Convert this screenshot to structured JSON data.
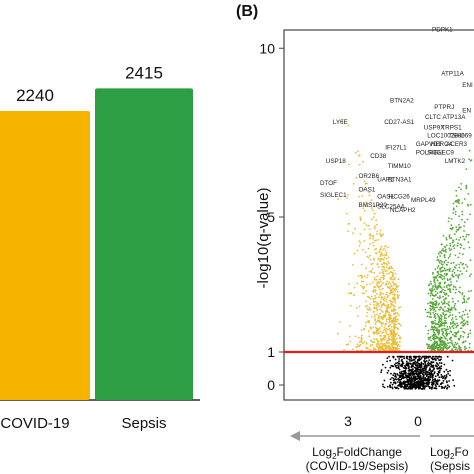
{
  "chart_data": [
    {
      "type": "bar",
      "categories": [
        "COVID-19",
        "Sepsis"
      ],
      "values": [
        2240,
        2415
      ],
      "value_labels": [
        "2240",
        "2415"
      ],
      "ylim": [
        0,
        3100
      ],
      "colors": {
        "COVID-19": "#f5b400",
        "Sepsis": "#2e9e45"
      }
    },
    {
      "type": "scatter",
      "panel_label": "(B)",
      "ylabel": "-log10(q-value)",
      "y_ticks": [
        "0",
        "1",
        "5",
        "10"
      ],
      "ylim": [
        0,
        11
      ],
      "x_ticks": [
        "3",
        "0"
      ],
      "xlabel_left": {
        "prefix": "Log",
        "sub": "2",
        "suffix": "FoldChange",
        "line2": "(COVID-19/Sepsis)"
      },
      "xlabel_right": {
        "prefix": "Log",
        "sub": "2",
        "suffix": "Fo",
        "line2": "(Sepsis"
      },
      "threshold": 1,
      "colors": {
        "covid_up": "#e8be3a",
        "sepsis_up": "#5aa83c",
        "nonsig": "#000000",
        "threshold": "#e41a1c"
      },
      "gene_labels": [
        {
          "text": "PDPK1",
          "x": -0.6,
          "y": 10.5
        },
        {
          "text": "ATP11A",
          "x": -1.0,
          "y": 9.2
        },
        {
          "text": "ENI",
          "x": -1.9,
          "y": 8.85
        },
        {
          "text": "BTN2A2",
          "x": 1.2,
          "y": 8.4
        },
        {
          "text": "PTPRJ",
          "x": -0.7,
          "y": 8.2
        },
        {
          "text": "EN",
          "x": -1.9,
          "y": 8.1
        },
        {
          "text": "CLTC",
          "x": -0.3,
          "y": 7.9
        },
        {
          "text": "ATP13A",
          "x": -1.05,
          "y": 7.9
        },
        {
          "text": "LY6E",
          "x": 3.65,
          "y": 7.75
        },
        {
          "text": "CD27-AS1",
          "x": 1.45,
          "y": 7.75
        },
        {
          "text": "USP9X",
          "x": -0.25,
          "y": 7.6
        },
        {
          "text": "TRPS1",
          "x": -1.0,
          "y": 7.6
        },
        {
          "text": "LOC100288069",
          "x": -0.4,
          "y": 7.35
        },
        {
          "text": "TSH2",
          "x": -1.3,
          "y": 7.35
        },
        {
          "text": "GAPVD1",
          "x": 0.1,
          "y": 7.1
        },
        {
          "text": "HERC4",
          "x": -0.55,
          "y": 7.1
        },
        {
          "text": "ACER3",
          "x": -1.2,
          "y": 7.1
        },
        {
          "text": "IFI27L1",
          "x": 1.4,
          "y": 7.0
        },
        {
          "text": "POLR3GL",
          "x": 0.1,
          "y": 6.85
        },
        {
          "text": "SIGLEC9",
          "x": -0.4,
          "y": 6.85
        },
        {
          "text": "CD38",
          "x": 2.05,
          "y": 6.75
        },
        {
          "text": "USP18",
          "x": 3.95,
          "y": 6.6
        },
        {
          "text": "LMTK2",
          "x": -1.15,
          "y": 6.6
        },
        {
          "text": "TIMM10",
          "x": 1.3,
          "y": 6.45
        },
        {
          "text": "OR2B6",
          "x": 2.55,
          "y": 6.15
        },
        {
          "text": "UAP1",
          "x": 1.75,
          "y": 6.05
        },
        {
          "text": "BTN3A1",
          "x": 1.3,
          "y": 6.05
        },
        {
          "text": "DTOF",
          "x": 4.2,
          "y": 5.95
        },
        {
          "text": "OAS1",
          "x": 2.55,
          "y": 5.75
        },
        {
          "text": "SIGLEC1",
          "x": 4.2,
          "y": 5.6
        },
        {
          "text": "OASL",
          "x": 1.75,
          "y": 5.55
        },
        {
          "text": "HCG26",
          "x": 1.25,
          "y": 5.55
        },
        {
          "text": "MRPL49",
          "x": 0.3,
          "y": 5.45
        },
        {
          "text": "BMS1P20",
          "x": 2.55,
          "y": 5.3
        },
        {
          "text": "SLC25A4",
          "x": 1.75,
          "y": 5.25
        },
        {
          "text": "NCAPH2",
          "x": 1.2,
          "y": 5.15
        }
      ]
    }
  ]
}
